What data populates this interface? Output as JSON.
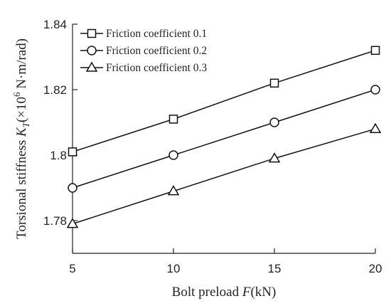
{
  "chart_data": {
    "type": "line",
    "x": [
      5,
      10,
      15,
      20
    ],
    "series": [
      {
        "name": "Friction coefficient 0.1",
        "marker": "square",
        "values": [
          1.801,
          1.811,
          1.822,
          1.832
        ]
      },
      {
        "name": "Friction coefficient 0.2",
        "marker": "circle",
        "values": [
          1.79,
          1.8,
          1.81,
          1.82
        ]
      },
      {
        "name": "Friction coefficient 0.3",
        "marker": "triangle",
        "values": [
          1.779,
          1.789,
          1.799,
          1.808
        ]
      }
    ],
    "xlim": [
      5,
      20
    ],
    "ylim": [
      1.77,
      1.84
    ],
    "x_ticks": [
      5,
      10,
      15,
      20
    ],
    "y_ticks": [
      1.78,
      1.8,
      1.82,
      1.84
    ],
    "x_tick_labels": [
      "5",
      "10",
      "15",
      "20"
    ],
    "y_tick_labels": [
      "1.78",
      "1.8",
      "1.82",
      "1.84"
    ],
    "xlabel": {
      "prefix": "Bolt preload ",
      "var": "F",
      "suffix": "(kN)"
    },
    "ylabel": {
      "prefix": "Torsional stiffness ",
      "var": "K",
      "sub": "T",
      "open": "(×10",
      "exp": "6",
      "unit": " N·m/rad)"
    },
    "legend_position": "top-left",
    "grid": false,
    "line_color": "#111111"
  }
}
